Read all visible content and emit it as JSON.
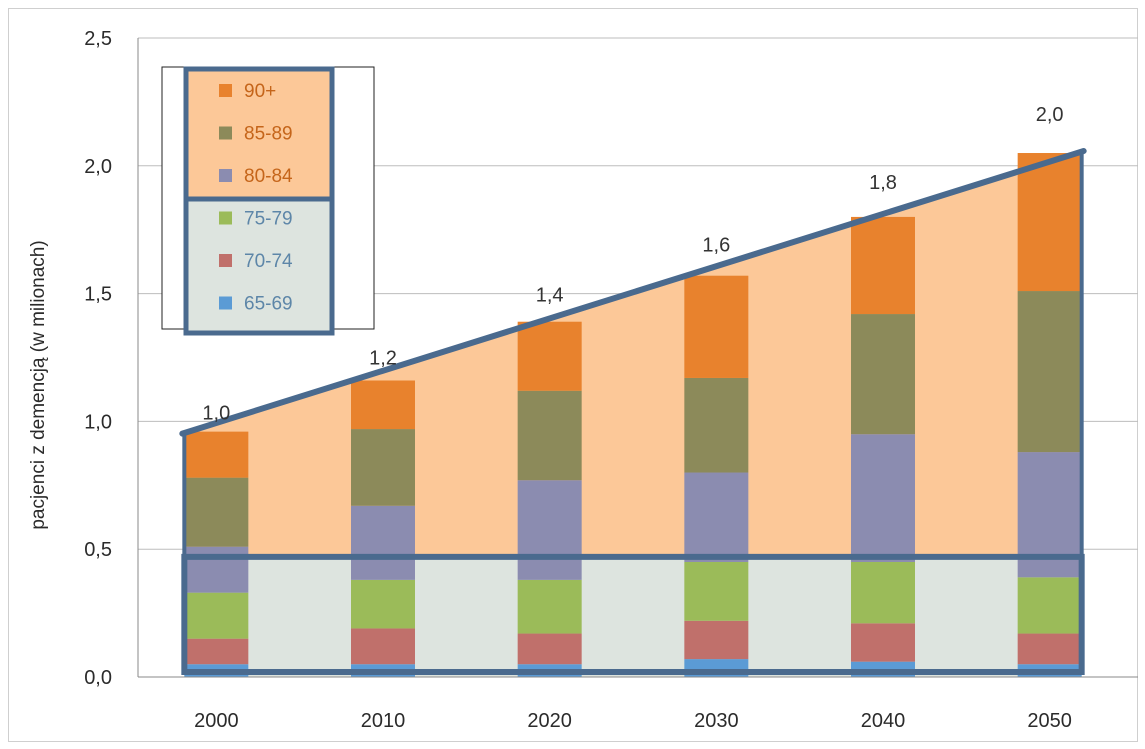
{
  "chart_data": {
    "type": "bar",
    "stacked": true,
    "categories": [
      "2000",
      "2010",
      "2020",
      "2030",
      "2040",
      "2050"
    ],
    "series": [
      {
        "name": "65-69",
        "color": "#5b9bd5",
        "values": [
          0.05,
          0.05,
          0.05,
          0.07,
          0.06,
          0.05
        ]
      },
      {
        "name": "70-74",
        "color": "#c0706b",
        "values": [
          0.1,
          0.14,
          0.12,
          0.15,
          0.15,
          0.12
        ]
      },
      {
        "name": "75-79",
        "color": "#9bbb59",
        "values": [
          0.18,
          0.19,
          0.21,
          0.23,
          0.24,
          0.22
        ]
      },
      {
        "name": "80-84",
        "color": "#8b8cb0",
        "values": [
          0.18,
          0.29,
          0.39,
          0.35,
          0.5,
          0.49
        ]
      },
      {
        "name": "85-89",
        "color": "#8c8a5a",
        "values": [
          0.27,
          0.3,
          0.35,
          0.37,
          0.47,
          0.63
        ]
      },
      {
        "name": "90+",
        "color": "#e8822d",
        "values": [
          0.18,
          0.19,
          0.27,
          0.4,
          0.38,
          0.54
        ]
      }
    ],
    "totals_labels": [
      "1,0",
      "1,2",
      "1,4",
      "1,6",
      "1,8",
      "2,0"
    ],
    "ylabel": "pacjenci z demencją (w milionach)",
    "xlabel": "",
    "ylim": [
      0,
      2.5
    ],
    "yticks": [
      "0,0",
      "0,5",
      "1,0",
      "1,5",
      "2,0",
      "2,5"
    ],
    "grid": true,
    "legend_placement": "top-left",
    "legend_order": [
      "90+",
      "85-89",
      "80-84",
      "75-79",
      "70-74",
      "65-69"
    ],
    "colors": {
      "upper_region_fill": "#fcc898",
      "lower_region_fill": "#dde4df",
      "outline": "#4a6a8e",
      "legend_upper_text": "#c5651a",
      "legend_lower_text": "#5d86a8"
    }
  }
}
